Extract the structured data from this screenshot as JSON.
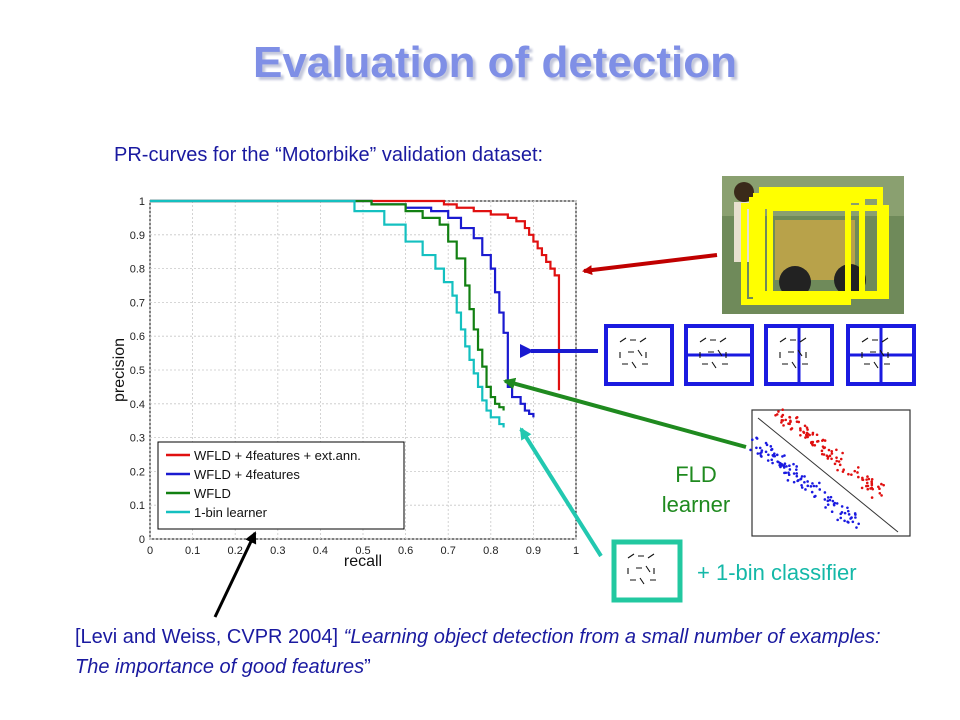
{
  "title": "Evaluation of detection",
  "subtitle": "PR-curves for the “Motorbike” validation dataset:",
  "citation": {
    "ref": "[Levi and Weiss, CVPR 2004]  ",
    "quote": "“Learning object detection from a small number of examples: The importance of good features",
    "close": "”"
  },
  "fld_label": {
    "line1": "FLD",
    "line2": "learner"
  },
  "onebin_label": "+ 1-bin classifier",
  "colors": {
    "red": "#e01010",
    "blue": "#1a1ad0",
    "green": "#128012",
    "cyan": "#14c0c0",
    "arrow_red": "#c00000",
    "arrow_blue": "#1a1ad0",
    "arrow_green": "#1f8a1f",
    "arrow_cyan": "#22c8b0",
    "arrow_black": "#000000",
    "feature_box": "#1a1ae0",
    "feature_box_cyan": "#22c8a0",
    "motorbike_window": "#ffff00"
  },
  "icons": [
    "motorbike-photo",
    "feature-filter-boxes",
    "fld-scatter-plot",
    "one-bin-feature-box"
  ],
  "chart_data": {
    "type": "line",
    "xlabel": "recall",
    "ylabel": "precision",
    "xlim": [
      0,
      1
    ],
    "ylim": [
      0,
      1
    ],
    "xticks": [
      "0",
      "0.1",
      "0.2",
      "0.3",
      "0.4",
      "0.5",
      "0.6",
      "0.7",
      "0.8",
      "0.9",
      "1"
    ],
    "yticks": [
      "0",
      "0.1",
      "0.2",
      "0.3",
      "0.4",
      "0.5",
      "0.6",
      "0.7",
      "0.8",
      "0.9",
      "1"
    ],
    "grid": true,
    "legend_position": "bottom-left",
    "series": [
      {
        "name": "WFLD + 4features + ext.ann.",
        "color": "#e01010",
        "x": [
          0.0,
          0.66,
          0.69,
          0.72,
          0.76,
          0.8,
          0.84,
          0.86,
          0.88,
          0.89,
          0.9,
          0.91,
          0.92,
          0.93,
          0.94,
          0.95,
          0.96,
          0.96,
          0.96
        ],
        "y": [
          1.0,
          1.0,
          0.99,
          0.98,
          0.97,
          0.96,
          0.95,
          0.94,
          0.92,
          0.9,
          0.88,
          0.86,
          0.84,
          0.82,
          0.8,
          0.78,
          0.76,
          0.6,
          0.44
        ]
      },
      {
        "name": "WFLD + 4features",
        "color": "#1a1ad0",
        "x": [
          0.0,
          0.44,
          0.52,
          0.6,
          0.66,
          0.7,
          0.73,
          0.76,
          0.78,
          0.8,
          0.81,
          0.82,
          0.83,
          0.84,
          0.84,
          0.85,
          0.87,
          0.88,
          0.89,
          0.9
        ],
        "y": [
          1.0,
          1.0,
          0.99,
          0.98,
          0.97,
          0.95,
          0.92,
          0.89,
          0.84,
          0.8,
          0.73,
          0.67,
          0.61,
          0.55,
          0.45,
          0.42,
          0.4,
          0.38,
          0.37,
          0.36
        ]
      },
      {
        "name": "WFLD",
        "color": "#128012",
        "x": [
          0.0,
          0.44,
          0.52,
          0.6,
          0.64,
          0.68,
          0.7,
          0.72,
          0.74,
          0.75,
          0.76,
          0.77,
          0.78,
          0.79,
          0.8,
          0.81,
          0.82,
          0.83
        ],
        "y": [
          1.0,
          1.0,
          0.99,
          0.97,
          0.95,
          0.93,
          0.88,
          0.83,
          0.75,
          0.68,
          0.62,
          0.56,
          0.51,
          0.45,
          0.42,
          0.4,
          0.39,
          0.38
        ]
      },
      {
        "name": "1-bin learner",
        "color": "#14c0c0",
        "x": [
          0.0,
          0.41,
          0.48,
          0.55,
          0.6,
          0.64,
          0.67,
          0.69,
          0.71,
          0.72,
          0.73,
          0.74,
          0.75,
          0.76,
          0.77,
          0.78,
          0.79,
          0.8,
          0.82,
          0.83
        ],
        "y": [
          1.0,
          1.0,
          0.97,
          0.93,
          0.88,
          0.84,
          0.8,
          0.76,
          0.72,
          0.67,
          0.62,
          0.57,
          0.53,
          0.49,
          0.45,
          0.41,
          0.38,
          0.36,
          0.34,
          0.33
        ]
      }
    ]
  }
}
